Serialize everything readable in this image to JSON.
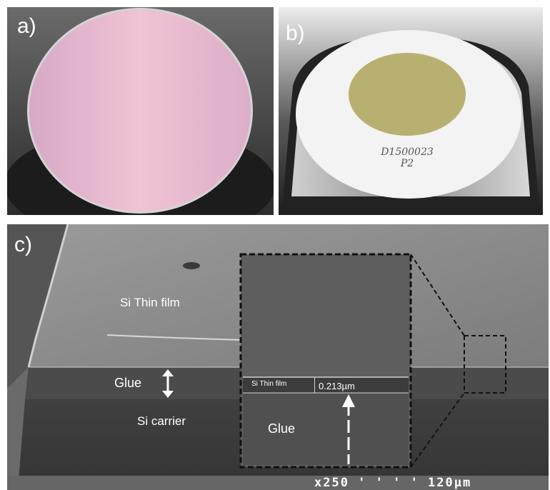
{
  "panels": {
    "a": {
      "label": "a)",
      "colors": {
        "background": "#3c3c3c",
        "wafer": "#e7b9d0",
        "rim": "#d9d9d9"
      }
    },
    "b": {
      "label": "b)",
      "wafer_marking_line1": "D1500023",
      "wafer_marking_line2": "P2",
      "colors": {
        "background": "#2f2f2f",
        "tray": "#8d8d8d",
        "wafer": "#f2f2f2",
        "film": "#b7af6f"
      }
    },
    "c": {
      "label": "c)",
      "label_thin_film": "Si Thin film",
      "label_glue": "Glue",
      "label_carrier": "Si carrier",
      "inset_thin_film": "Si Thin film",
      "inset_thickness": "0.213µm",
      "inset_glue": "Glue",
      "sem_databar": "x250 ' ' ' ' 120µm",
      "colors": {
        "top_surface": "#8a8a8a",
        "glue_layer": "#4a4a4a",
        "carrier": "#3a3a3a",
        "inset_bg": "#606060"
      }
    }
  }
}
